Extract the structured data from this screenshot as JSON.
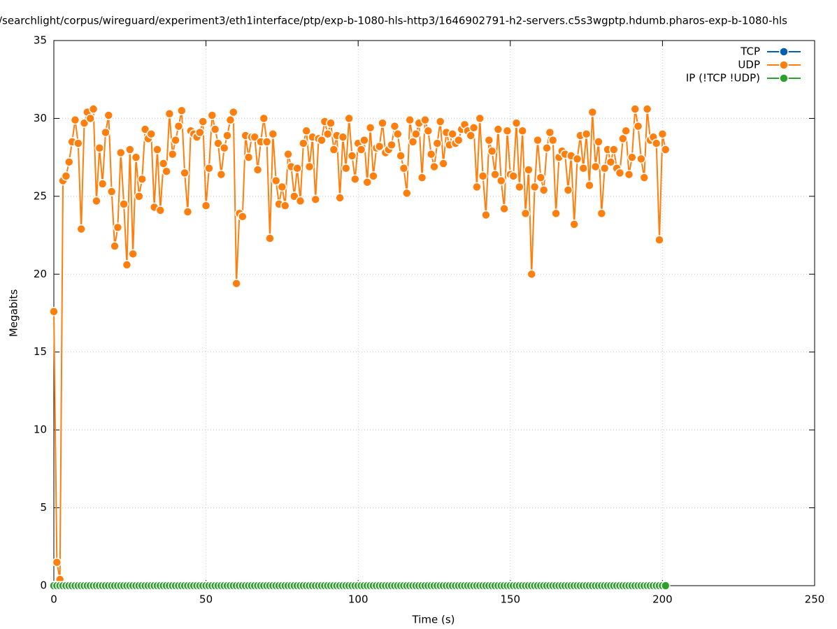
{
  "chart_data": {
    "type": "line",
    "title": "/searchlight/corpus/wireguard/experiment3/eth1interface/ptp/exp-b-1080-hls-http3/1646902791-h2-servers.c5s3wgptp.hdumb.pharos-exp-b-1080-hls",
    "x_label": "Time (s)",
    "y_label": "Megabits",
    "x": [
      0,
      1,
      2,
      3,
      4,
      5,
      6,
      7,
      8,
      9,
      10,
      11,
      12,
      13,
      14,
      15,
      16,
      17,
      18,
      19,
      20,
      21,
      22,
      23,
      24,
      25,
      26,
      27,
      28,
      29,
      30,
      31,
      32,
      33,
      34,
      35,
      36,
      37,
      38,
      39,
      40,
      41,
      42,
      43,
      44,
      45,
      46,
      47,
      48,
      49,
      50,
      51,
      52,
      53,
      54,
      55,
      56,
      57,
      58,
      59,
      60,
      61,
      62,
      63,
      64,
      65,
      66,
      67,
      68,
      69,
      70,
      71,
      72,
      73,
      74,
      75,
      76,
      77,
      78,
      79,
      80,
      81,
      82,
      83,
      84,
      85,
      86,
      87,
      88,
      89,
      90,
      91,
      92,
      93,
      94,
      95,
      96,
      97,
      98,
      99,
      100,
      101,
      102,
      103,
      104,
      105,
      106,
      107,
      108,
      109,
      110,
      111,
      112,
      113,
      114,
      115,
      116,
      117,
      118,
      119,
      120,
      121,
      122,
      123,
      124,
      125,
      126,
      127,
      128,
      129,
      130,
      131,
      132,
      133,
      134,
      135,
      136,
      137,
      138,
      139,
      140,
      141,
      142,
      143,
      144,
      145,
      146,
      147,
      148,
      149,
      150,
      151,
      152,
      153,
      154,
      155,
      156,
      157,
      158,
      159,
      160,
      161,
      162,
      163,
      164,
      165,
      166,
      167,
      168,
      169,
      170,
      171,
      172,
      173,
      174,
      175,
      176,
      177,
      178,
      179,
      180,
      181,
      182,
      183,
      184,
      185,
      186,
      187,
      188,
      189,
      190,
      191,
      192,
      193,
      194,
      195,
      196,
      197,
      198,
      199,
      200,
      201
    ],
    "series": [
      {
        "name": "TCP",
        "color": "#0060ad",
        "values": [
          0,
          0,
          0,
          0,
          0,
          0,
          0,
          0,
          0,
          0,
          0,
          0,
          0,
          0,
          0,
          0,
          0,
          0,
          0,
          0,
          0,
          0,
          0,
          0,
          0,
          0,
          0,
          0,
          0,
          0,
          0,
          0,
          0,
          0,
          0,
          0,
          0,
          0,
          0,
          0,
          0,
          0,
          0,
          0,
          0,
          0,
          0,
          0,
          0,
          0,
          0,
          0,
          0,
          0,
          0,
          0,
          0,
          0,
          0,
          0,
          0,
          0,
          0,
          0,
          0,
          0,
          0,
          0,
          0,
          0,
          0,
          0,
          0,
          0,
          0,
          0,
          0,
          0,
          0,
          0,
          0,
          0,
          0,
          0,
          0,
          0,
          0,
          0,
          0,
          0,
          0,
          0,
          0,
          0,
          0,
          0,
          0,
          0,
          0,
          0,
          0,
          0,
          0,
          0,
          0,
          0,
          0,
          0,
          0,
          0,
          0,
          0,
          0,
          0,
          0,
          0,
          0,
          0,
          0,
          0,
          0,
          0,
          0,
          0,
          0,
          0,
          0,
          0,
          0,
          0,
          0,
          0,
          0,
          0,
          0,
          0,
          0,
          0,
          0,
          0,
          0,
          0,
          0,
          0,
          0,
          0,
          0,
          0,
          0,
          0,
          0,
          0,
          0,
          0,
          0,
          0,
          0,
          0,
          0,
          0,
          0,
          0,
          0,
          0,
          0,
          0,
          0,
          0,
          0,
          0,
          0,
          0,
          0,
          0,
          0,
          0,
          0,
          0,
          0,
          0,
          0,
          0,
          0,
          0,
          0,
          0,
          0,
          0,
          0,
          0,
          0,
          0,
          0,
          0,
          0,
          0,
          0,
          0,
          0,
          0,
          0,
          0
        ]
      },
      {
        "name": "UDP",
        "color": "#ff7f0e",
        "values": [
          17.6,
          1.5,
          0.4,
          26.0,
          26.3,
          27.2,
          28.5,
          29.9,
          28.4,
          22.9,
          29.7,
          30.4,
          30.0,
          30.6,
          24.7,
          28.1,
          25.8,
          29.1,
          30.2,
          25.3,
          21.8,
          23.0,
          27.8,
          24.5,
          20.6,
          28.0,
          21.3,
          27.5,
          25.0,
          26.1,
          29.3,
          28.7,
          29.0,
          24.3,
          28.0,
          24.1,
          27.1,
          26.6,
          30.3,
          27.7,
          28.6,
          29.5,
          30.5,
          26.5,
          24.0,
          29.2,
          29.0,
          28.8,
          29.1,
          29.8,
          24.4,
          26.8,
          30.2,
          29.3,
          28.4,
          26.4,
          28.1,
          28.9,
          29.9,
          30.4,
          19.4,
          23.9,
          23.7,
          28.9,
          27.5,
          28.8,
          28.8,
          26.7,
          28.5,
          30.0,
          28.5,
          22.3,
          29.0,
          26.0,
          24.5,
          25.6,
          24.4,
          27.7,
          26.9,
          25.0,
          26.8,
          24.7,
          28.4,
          29.2,
          26.9,
          28.8,
          24.8,
          28.7,
          28.6,
          29.8,
          29.0,
          29.7,
          28.0,
          28.9,
          24.9,
          28.8,
          26.8,
          30.0,
          27.6,
          26.1,
          28.4,
          28.0,
          28.6,
          25.9,
          29.4,
          26.3,
          28.1,
          28.2,
          29.7,
          27.8,
          28.0,
          28.3,
          29.5,
          29.0,
          27.6,
          26.8,
          25.2,
          29.9,
          28.5,
          29.0,
          29.7,
          26.2,
          29.9,
          29.2,
          27.7,
          26.9,
          28.4,
          29.8,
          27.1,
          29.1,
          28.3,
          29.0,
          28.4,
          28.6,
          29.3,
          29.6,
          29.2,
          28.9,
          29.4,
          25.6,
          30.0,
          26.3,
          23.8,
          28.6,
          27.9,
          26.4,
          29.3,
          26.0,
          24.2,
          29.2,
          26.4,
          26.3,
          29.7,
          25.6,
          29.2,
          23.9,
          26.7,
          20.0,
          25.6,
          28.6,
          26.2,
          25.4,
          28.1,
          29.1,
          28.6,
          23.9,
          27.5,
          27.9,
          27.7,
          25.4,
          27.6,
          23.2,
          27.4,
          28.9,
          26.8,
          29.0,
          25.7,
          30.4,
          26.9,
          28.5,
          23.9,
          26.8,
          28.0,
          27.2,
          28.0,
          26.8,
          26.5,
          28.7,
          29.2,
          26.4,
          27.5,
          30.6,
          29.5,
          27.4,
          26.2,
          30.6,
          28.6,
          28.8,
          28.4,
          22.2,
          29.0,
          28.0
        ]
      },
      {
        "name": "IP (!TCP  !UDP)",
        "color": "#2ca02c",
        "values": [
          0,
          0,
          0,
          0,
          0,
          0,
          0,
          0,
          0,
          0,
          0,
          0,
          0,
          0,
          0,
          0,
          0,
          0,
          0,
          0,
          0,
          0,
          0,
          0,
          0,
          0,
          0,
          0,
          0,
          0,
          0,
          0,
          0,
          0,
          0,
          0,
          0,
          0,
          0,
          0,
          0,
          0,
          0,
          0,
          0,
          0,
          0,
          0,
          0,
          0,
          0,
          0,
          0,
          0,
          0,
          0,
          0,
          0,
          0,
          0,
          0,
          0,
          0,
          0,
          0,
          0,
          0,
          0,
          0,
          0,
          0,
          0,
          0,
          0,
          0,
          0,
          0,
          0,
          0,
          0,
          0,
          0,
          0,
          0,
          0,
          0,
          0,
          0,
          0,
          0,
          0,
          0,
          0,
          0,
          0,
          0,
          0,
          0,
          0,
          0,
          0,
          0,
          0,
          0,
          0,
          0,
          0,
          0,
          0,
          0,
          0,
          0,
          0,
          0,
          0,
          0,
          0,
          0,
          0,
          0,
          0,
          0,
          0,
          0,
          0,
          0,
          0,
          0,
          0,
          0,
          0,
          0,
          0,
          0,
          0,
          0,
          0,
          0,
          0,
          0,
          0,
          0,
          0,
          0,
          0,
          0,
          0,
          0,
          0,
          0,
          0,
          0,
          0,
          0,
          0,
          0,
          0,
          0,
          0,
          0,
          0,
          0,
          0,
          0,
          0,
          0,
          0,
          0,
          0,
          0,
          0,
          0,
          0,
          0,
          0,
          0,
          0,
          0,
          0,
          0,
          0,
          0,
          0,
          0,
          0,
          0,
          0,
          0,
          0,
          0,
          0,
          0,
          0,
          0,
          0,
          0,
          0,
          0,
          0,
          0,
          0,
          0
        ]
      }
    ],
    "xlim": [
      0,
      250
    ],
    "xticks": [
      0,
      50,
      100,
      150,
      200,
      250
    ],
    "ylim": [
      0,
      35
    ],
    "yticks": [
      0,
      5,
      10,
      15,
      20,
      25,
      30,
      35
    ],
    "grid": true,
    "legend": "top-right"
  }
}
